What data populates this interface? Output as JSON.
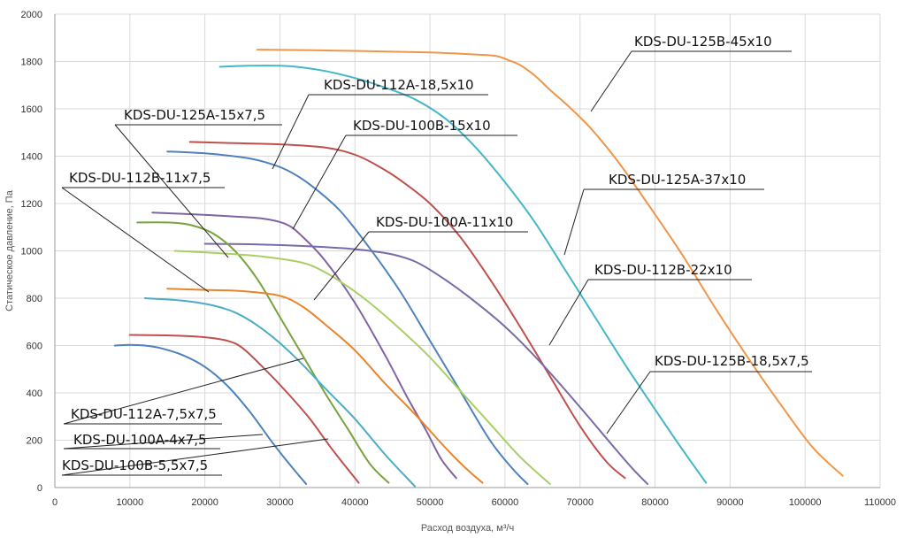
{
  "chart_data": {
    "type": "line",
    "xlabel": "Расход воздуха, м³/ч",
    "ylabel": "Статическое давление, Па",
    "xlim": [
      0,
      110000
    ],
    "ylim": [
      0,
      2000
    ],
    "grid": true,
    "x_ticks": [
      "0",
      "10000",
      "20000",
      "30000",
      "40000",
      "50000",
      "60000",
      "70000",
      "80000",
      "90000",
      "100000",
      "110000"
    ],
    "y_ticks": [
      "0",
      "200",
      "400",
      "600",
      "800",
      "1000",
      "1200",
      "1400",
      "1600",
      "1800",
      "2000"
    ],
    "series": [
      {
        "name": "KDS-DU-125B-45x10",
        "color": "#f0964a",
        "x": [
          27000,
          40000,
          50000,
          57000,
          59000,
          60500,
          62000,
          64000,
          66000,
          68500,
          71500,
          75000,
          79000,
          83500,
          88000,
          93000,
          97000,
          101000,
          105000
        ],
        "y": [
          1850,
          1845,
          1838,
          1828,
          1822,
          1805,
          1785,
          1740,
          1680,
          1610,
          1515,
          1380,
          1200,
          990,
          760,
          520,
          340,
          170,
          50
        ]
      },
      {
        "name": "KDS-DU-125A-37x10",
        "color": "#43b7c6",
        "x": [
          22000,
          26000,
          30000,
          33000,
          36000,
          40000,
          44000,
          48000,
          52000,
          56000,
          60000,
          64000,
          68000,
          72000,
          76000,
          80000,
          83000,
          85000,
          86800
        ],
        "y": [
          1778,
          1782,
          1782,
          1775,
          1760,
          1730,
          1690,
          1640,
          1560,
          1440,
          1290,
          1120,
          920,
          720,
          520,
          330,
          190,
          100,
          20
        ]
      },
      {
        "name": "KDS-DU-112A-18,5x10",
        "color": "#c0504d",
        "x": [
          18000,
          24000,
          30000,
          35000,
          38000,
          40500,
          43000,
          46000,
          50000,
          54000,
          58000,
          62000,
          66000,
          70000,
          73500,
          76000
        ],
        "y": [
          1460,
          1455,
          1450,
          1440,
          1425,
          1400,
          1360,
          1300,
          1200,
          1060,
          880,
          680,
          470,
          260,
          110,
          40
        ]
      },
      {
        "name": "KDS-DU-100B-15x10",
        "color": "#4f81bd",
        "x": [
          15000,
          20000,
          25000,
          28000,
          31000,
          34000,
          38000,
          42000,
          46000,
          50000,
          54000,
          58000,
          61000,
          63000
        ],
        "y": [
          1420,
          1412,
          1395,
          1375,
          1340,
          1280,
          1170,
          1010,
          830,
          620,
          410,
          200,
          80,
          15
        ]
      },
      {
        "name": "KDS-DU-125A-15x7,5",
        "color": "#8064a2",
        "x": [
          13000,
          18000,
          24000,
          28000,
          31000,
          33000,
          36000,
          40000,
          44000,
          47000,
          49500,
          51500,
          53500
        ],
        "y": [
          1162,
          1155,
          1145,
          1135,
          1110,
          1060,
          960,
          780,
          560,
          380,
          240,
          120,
          40
        ]
      },
      {
        "name": "KDS-DU-112B-22x10",
        "color": "#7b6aa8",
        "x": [
          20000,
          26000,
          32000,
          38000,
          42000,
          45000,
          48000,
          51000,
          55000,
          60000,
          65000,
          70000,
          74000,
          77000,
          79000
        ],
        "y": [
          1030,
          1028,
          1022,
          1012,
          1000,
          985,
          955,
          900,
          810,
          680,
          520,
          340,
          190,
          80,
          15
        ]
      },
      {
        "name": "KDS-DU-112B-11x7,5",
        "color": "#77a33d",
        "x": [
          11000,
          15000,
          18000,
          21000,
          24000,
          27000,
          30000,
          33000,
          36000,
          39000,
          42000,
          44500
        ],
        "y": [
          1120,
          1120,
          1110,
          1075,
          1000,
          880,
          720,
          560,
          400,
          250,
          100,
          20
        ]
      },
      {
        "name": "KDS-DU-100A-11x10",
        "color": "#a8cf63",
        "x": [
          16000,
          22000,
          28000,
          33000,
          36000,
          39000,
          42000,
          46000,
          50000,
          54000,
          58000,
          62000,
          66000
        ],
        "y": [
          1000,
          990,
          975,
          950,
          910,
          850,
          780,
          670,
          550,
          410,
          270,
          130,
          15
        ]
      },
      {
        "name": "KDS-DU-125B-18,5x7,5",
        "color": "#e7852a",
        "x": [
          15000,
          20000,
          25000,
          30000,
          33000,
          36000,
          40000,
          44000,
          48000,
          52000,
          55000,
          57000
        ],
        "y": [
          840,
          835,
          830,
          810,
          765,
          690,
          580,
          440,
          310,
          170,
          75,
          20
        ]
      },
      {
        "name": "KDS-DU-100A-4x7,5",
        "color": "#4bacc6",
        "x": [
          12000,
          17000,
          21000,
          24000,
          27000,
          30000,
          33000,
          36000,
          40000,
          44000,
          48000
        ],
        "y": [
          800,
          790,
          770,
          740,
          685,
          610,
          520,
          420,
          290,
          140,
          5
        ]
      },
      {
        "name": "KDS-DU-112A-7,5x7,5",
        "color": "#c0504d",
        "x": [
          10000,
          15000,
          20000,
          23000,
          25000,
          28000,
          31000,
          34000,
          37000,
          40500
        ],
        "y": [
          645,
          643,
          635,
          620,
          590,
          500,
          400,
          290,
          160,
          20
        ]
      },
      {
        "name": "KDS-DU-100B-5,5x7,5",
        "color": "#4f81bd",
        "x": [
          8000,
          10000,
          12000,
          14000,
          17000,
          20000,
          23000,
          26000,
          29000,
          31500,
          33500
        ],
        "y": [
          600,
          603,
          600,
          590,
          560,
          510,
          430,
          320,
          190,
          90,
          15
        ]
      }
    ],
    "annotations": [
      {
        "series": 0,
        "text": "KDS-DU-125B-45x10"
      },
      {
        "series": 2,
        "text": "KDS-DU-112A-18,5x10"
      },
      {
        "series": 4,
        "text": "KDS-DU-125A-15x7,5"
      },
      {
        "series": 3,
        "text": "KDS-DU-100B-15x10"
      },
      {
        "series": 1,
        "text": "KDS-DU-125A-37x10"
      },
      {
        "series": 6,
        "text": "KDS-DU-112B-11x7,5"
      },
      {
        "series": 7,
        "text": "KDS-DU-100A-11x10"
      },
      {
        "series": 5,
        "text": "KDS-DU-112B-22x10"
      },
      {
        "series": 8,
        "text": "KDS-DU-125B-18,5x7,5"
      },
      {
        "series": 10,
        "text": "KDS-DU-112A-7,5x7,5"
      },
      {
        "series": 9,
        "text": "KDS-DU-100A-4x7,5"
      },
      {
        "series": 11,
        "text": "KDS-DU-100B-5,5x7,5"
      }
    ]
  }
}
